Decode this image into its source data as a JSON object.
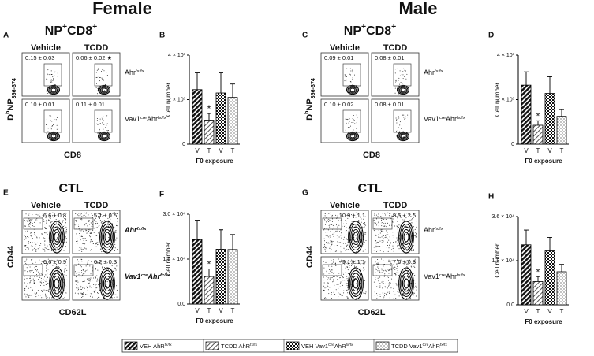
{
  "headers": [
    "Female",
    "Male"
  ],
  "flow": [
    {
      "letter": "A",
      "title": [
        {
          "t": "NP"
        },
        {
          "sup": "+"
        },
        {
          "t": "CD8"
        },
        {
          "sup": "+"
        }
      ],
      "columns": [
        "Vehicle",
        "TCDD"
      ],
      "rows": [
        {
          "label": [
            {
              "t": "Ahr"
            },
            {
              "sup": "fx/fx"
            }
          ],
          "gates": [
            "0.15 ± 0.03",
            "0.06 ± 0.02 ★"
          ]
        },
        {
          "label": [
            {
              "t": "Vav1"
            },
            {
              "sup": "cre"
            },
            {
              "t": "Ahr"
            },
            {
              "sup": "fx/fx"
            }
          ],
          "gates": [
            "0.10 ± 0.01",
            "0.11 ± 0.01"
          ]
        }
      ],
      "y_label": [
        {
          "t": "D"
        },
        {
          "sup": "b"
        },
        {
          "t": "NP"
        },
        {
          "sub": "366-374"
        }
      ],
      "x_label": "CD8"
    },
    {
      "letter": "C",
      "title": [
        {
          "t": "NP"
        },
        {
          "sup": "+"
        },
        {
          "t": "CD8"
        },
        {
          "sup": "+"
        }
      ],
      "columns": [
        "Vehicle",
        "TCDD"
      ],
      "rows": [
        {
          "label": [
            {
              "t": "Ahr"
            },
            {
              "sup": "fx/fx"
            }
          ],
          "gates": [
            "0.09 ± 0.01",
            "0.08 ± 0.01"
          ]
        },
        {
          "label": [
            {
              "t": "Vav1"
            },
            {
              "sup": "cre"
            },
            {
              "t": "Ahr"
            },
            {
              "sup": "fx/fx"
            }
          ],
          "gates": [
            "0.10 ± 0.02",
            "0.08 ± 0.01"
          ]
        }
      ],
      "y_label": [
        {
          "t": "D"
        },
        {
          "sup": "b"
        },
        {
          "t": "NP"
        },
        {
          "sub": "366-374"
        }
      ],
      "x_label": "CD8"
    },
    {
      "letter": "E",
      "title": [
        {
          "t": "CTL"
        }
      ],
      "columns": [
        "Vehicle",
        "TCDD"
      ],
      "rows": [
        {
          "label": [
            {
              "t": "Ahr"
            },
            {
              "sup": "fx/fx"
            }
          ],
          "gates": [
            "6.6 ± 0.8",
            "5.1 ± 0.5"
          ]
        },
        {
          "label": [
            {
              "t": "Vav1"
            },
            {
              "sup": "cre"
            },
            {
              "t": "Ahr"
            },
            {
              "sup": "fx/fx"
            }
          ],
          "gates": [
            "6.6 ± 0.9",
            "6.2 ± 0.3"
          ]
        }
      ],
      "y_label": [
        {
          "t": "CD44"
        }
      ],
      "x_label": "CD62L"
    },
    {
      "letter": "G",
      "title": [
        {
          "t": "CTL"
        }
      ],
      "columns": [
        "Vehicle",
        "TCDD"
      ],
      "rows": [
        {
          "label": [
            {
              "t": "Ahr"
            },
            {
              "sup": "fx/fx"
            }
          ],
          "gates": [
            "10.9 ± 1.1",
            "8.5 ± 2.5"
          ]
        },
        {
          "label": [
            {
              "t": "Vav1"
            },
            {
              "sup": "cre"
            },
            {
              "t": "Ahr"
            },
            {
              "sup": "fx/fx"
            }
          ],
          "gates": [
            "9.1 ± 1.1",
            "7.0 ± 0.8"
          ]
        }
      ],
      "y_label": [
        {
          "t": "CD44"
        }
      ],
      "x_label": "CD62L"
    }
  ],
  "chart_data": [
    {
      "type": "bar",
      "letter": "B",
      "y_label": "Cell number",
      "x_label": "F0 exposure",
      "categories": [
        "V",
        "T",
        "V",
        "T"
      ],
      "values": [
        2450,
        1080,
        2300,
        2100
      ],
      "errors": [
        750,
        300,
        900,
        600
      ],
      "annotation": "*",
      "ylim": [
        0,
        4000
      ],
      "yticks": [
        0,
        {
          "value": 2000,
          "label": "2 × 10³"
        },
        {
          "value": 4000,
          "label": "4 × 10³"
        }
      ]
    },
    {
      "type": "bar",
      "letter": "D",
      "y_label": "Cell number",
      "x_label": "F0 exposure",
      "categories": [
        "V",
        "T",
        "V",
        "T"
      ],
      "values": [
        2650,
        850,
        2280,
        1250
      ],
      "errors": [
        600,
        200,
        750,
        300
      ],
      "annotation": "*",
      "ylim": [
        0,
        4000
      ],
      "yticks": [
        0,
        {
          "value": 2000,
          "label": "2 × 10³"
        },
        {
          "value": 4000,
          "label": "4 × 10³"
        }
      ]
    },
    {
      "type": "bar",
      "letter": "F",
      "y_label": "Cell number",
      "x_label": "F0 exposure",
      "categories": [
        "V",
        "T",
        "V",
        "T"
      ],
      "values": [
        21500,
        9200,
        18300,
        18200
      ],
      "errors": [
        6500,
        2500,
        6500,
        5000
      ],
      "annotation": "*",
      "ylim": [
        0,
        30000
      ],
      "yticks": [
        {
          "value": 0,
          "label": "0.0"
        },
        {
          "value": 15000,
          "label": "1.5 × 10⁴"
        },
        {
          "value": 30000,
          "label": "3.0 × 10⁴"
        }
      ]
    },
    {
      "type": "bar",
      "letter": "H",
      "y_label": "Cell number",
      "x_label": "F0 exposure",
      "categories": [
        "V",
        "T",
        "V",
        "T"
      ],
      "values": [
        24500,
        9500,
        22000,
        13500
      ],
      "errors": [
        6000,
        2000,
        5500,
        3000
      ],
      "annotation": "*",
      "ylim": [
        0,
        36000
      ],
      "yticks": [
        {
          "value": 0,
          "label": "0.0"
        },
        {
          "value": 18000,
          "label": "1.8 × 10⁴"
        },
        {
          "value": 36000,
          "label": "3.6 × 10⁴"
        }
      ]
    }
  ],
  "legend": [
    [
      {
        "t": "VEH AhR"
      },
      {
        "sup": "fx/fx"
      }
    ],
    [
      {
        "t": "TCDD AhR"
      },
      {
        "sup": "fx/fx"
      }
    ],
    [
      {
        "t": "VEH Vav1"
      },
      {
        "sup": "Cre"
      },
      {
        "t": "AhR"
      },
      {
        "sup": "fx/fx"
      }
    ],
    [
      {
        "t": "TCDD Vav1"
      },
      {
        "sup": "Cre"
      },
      {
        "t": "AhR"
      },
      {
        "sup": "fx/fx"
      }
    ]
  ]
}
